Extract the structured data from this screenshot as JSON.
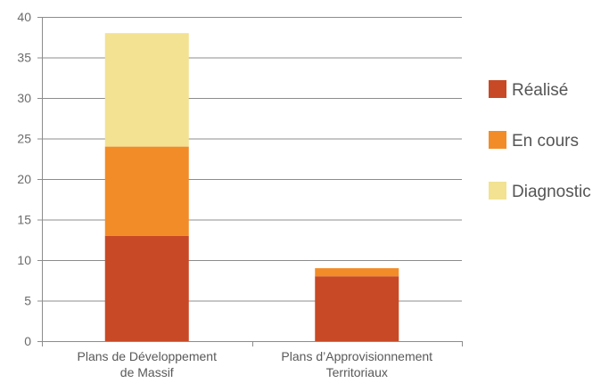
{
  "chart_data": {
    "type": "bar",
    "stacked": true,
    "categories": [
      [
        "Plans de Développement",
        "de Massif"
      ],
      [
        "Plans d’Approvisionnement",
        "Territoriaux"
      ]
    ],
    "series": [
      {
        "name": "Réalisé",
        "values": [
          13,
          8
        ],
        "color": "#c84926"
      },
      {
        "name": "En cours",
        "values": [
          11,
          1
        ],
        "color": "#f28c28"
      },
      {
        "name": "Diagnostic",
        "values": [
          14,
          0
        ],
        "color": "#f2e292"
      }
    ],
    "ylim": [
      0,
      40
    ],
    "yticks": [
      0,
      5,
      10,
      15,
      20,
      25,
      30,
      35,
      40
    ],
    "grid": true,
    "legend_position": "right",
    "title": "",
    "xlabel": "",
    "ylabel": ""
  }
}
